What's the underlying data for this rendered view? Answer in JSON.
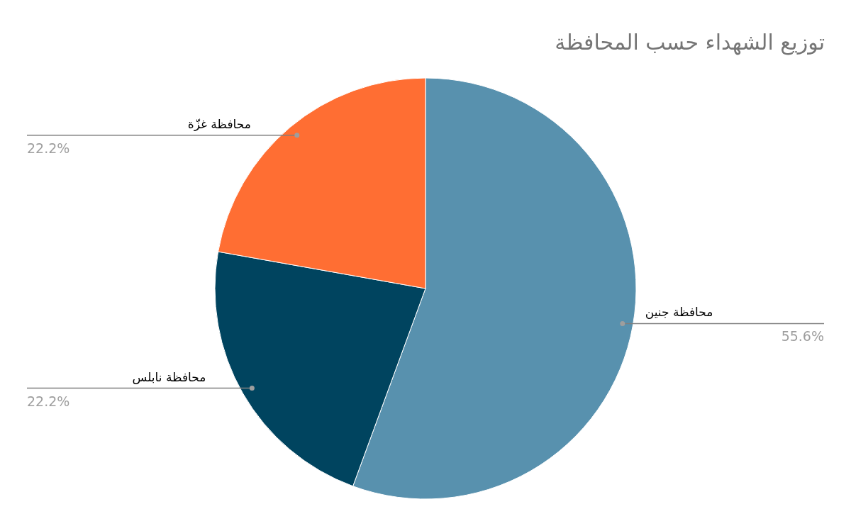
{
  "chart_data": {
    "type": "pie",
    "title": "توزيع الشهداء حسب المحافظة",
    "categories": [
      "محافظة جنين",
      "محافظة نابلس",
      "محافظة غزّة"
    ],
    "values": [
      55.6,
      22.2,
      22.2
    ],
    "colors": [
      "#5891ae",
      "#00445f",
      "#ff6e33"
    ],
    "value_labels": [
      "55.6%",
      "22.2%",
      "22.2%"
    ]
  }
}
